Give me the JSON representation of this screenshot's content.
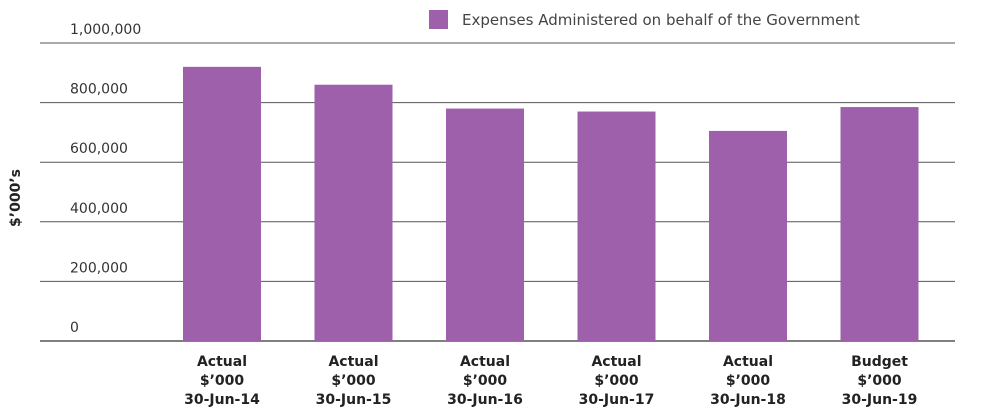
{
  "chart_data": {
    "type": "bar",
    "categories": [
      [
        "Actual",
        "$’000",
        "30-Jun-14"
      ],
      [
        "Actual",
        "$’000",
        "30-Jun-15"
      ],
      [
        "Actual",
        "$’000",
        "30-Jun-16"
      ],
      [
        "Actual",
        "$’000",
        "30-Jun-17"
      ],
      [
        "Actual",
        "$’000",
        "30-Jun-18"
      ],
      [
        "Budget",
        "$’000",
        "30-Jun-19"
      ]
    ],
    "series": [
      {
        "name": "Expenses Administered on behalf of the Government",
        "color": "#9e5fab",
        "values": [
          920000,
          860000,
          780000,
          770000,
          705000,
          785000
        ]
      }
    ],
    "ylabel": "$’000’s",
    "ylim": [
      0,
      1000000
    ],
    "yticks": [
      0,
      200000,
      400000,
      600000,
      800000,
      1000000
    ],
    "ytick_labels": [
      "0",
      "200,000",
      "400,000",
      "600,000",
      "800,000",
      "1,000,000"
    ],
    "grid": true,
    "legend_position": "top-right"
  }
}
